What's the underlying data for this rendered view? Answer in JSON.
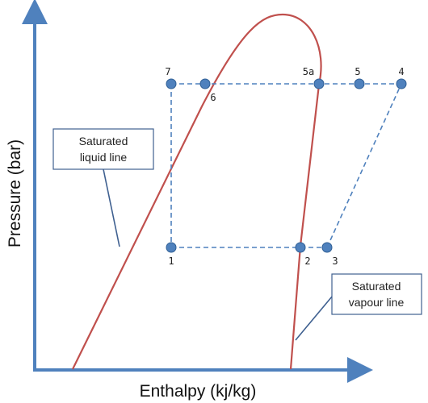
{
  "axes": {
    "x_label": "Enthalpy (kj/kg)",
    "y_label": "Pressure (bar)"
  },
  "points": [
    {
      "label": "7"
    },
    {
      "label": "6"
    },
    {
      "label": "5a"
    },
    {
      "label": "5"
    },
    {
      "label": "4"
    },
    {
      "label": "1"
    },
    {
      "label": "2"
    },
    {
      "label": "3"
    }
  ],
  "callouts": [
    {
      "lines": [
        "Saturated",
        "liquid line"
      ]
    },
    {
      "lines": [
        "Saturated",
        "vapour line"
      ]
    }
  ]
}
